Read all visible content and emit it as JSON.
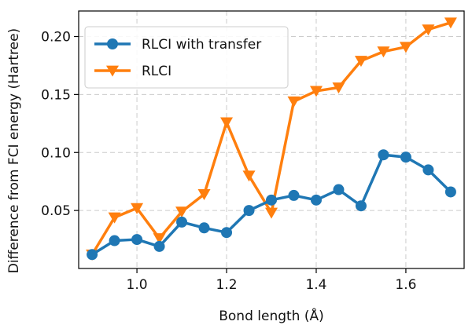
{
  "chart_data": {
    "type": "line",
    "title": "",
    "xlabel": "Bond length (Å)",
    "ylabel": "Difference from FCI energy (Hartree)",
    "xlim": [
      0.87,
      1.73
    ],
    "ylim": [
      0.0,
      0.222
    ],
    "x_ticks": [
      1.0,
      1.2,
      1.4,
      1.6
    ],
    "x_tick_labels": [
      "1.0",
      "1.2",
      "1.4",
      "1.6"
    ],
    "y_ticks": [
      0.05,
      0.1,
      0.15,
      0.2
    ],
    "y_tick_labels": [
      "0.05",
      "0.10",
      "0.15",
      "0.20"
    ],
    "grid": true,
    "legend_position": "top-left",
    "x": [
      0.9,
      0.95,
      1.0,
      1.05,
      1.1,
      1.15,
      1.2,
      1.25,
      1.3,
      1.35,
      1.4,
      1.45,
      1.5,
      1.55,
      1.6,
      1.65,
      1.7
    ],
    "series": [
      {
        "name": "RLCI with transfer",
        "color": "#1f77b4",
        "marker": "circle",
        "values": [
          0.012,
          0.024,
          0.025,
          0.019,
          0.04,
          0.035,
          0.031,
          0.05,
          0.059,
          0.063,
          0.059,
          0.068,
          0.054,
          0.098,
          0.096,
          0.085,
          0.066
        ]
      },
      {
        "name": "RLCI",
        "color": "#ff7f0e",
        "marker": "triangle-down",
        "values": [
          0.012,
          0.044,
          0.052,
          0.026,
          0.049,
          0.064,
          0.126,
          0.08,
          0.048,
          0.144,
          0.153,
          0.156,
          0.179,
          0.187,
          0.191,
          0.206,
          0.212
        ]
      }
    ]
  }
}
